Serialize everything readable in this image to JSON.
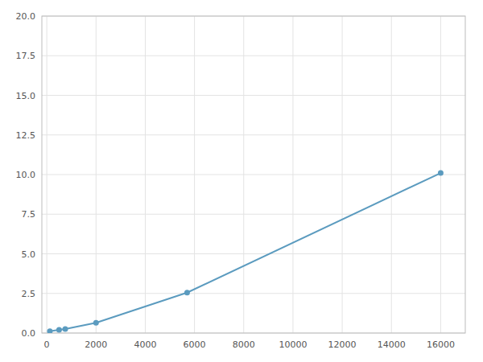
{
  "chart_data": {
    "type": "line",
    "x": [
      125,
      500,
      750,
      2000,
      5700,
      16000
    ],
    "values": [
      0.12,
      0.2,
      0.25,
      0.65,
      2.55,
      10.1
    ],
    "color": "#5b9bbf",
    "marker": "circle",
    "xlim": [
      -200,
      17000
    ],
    "ylim": [
      0,
      20.0
    ],
    "xticks": [
      0,
      2000,
      4000,
      6000,
      8000,
      10000,
      12000,
      14000,
      16000
    ],
    "yticks": [
      {
        "value": 0.0,
        "label": "0.0"
      },
      2.5,
      {
        "value": 5.0,
        "label": "5.0"
      },
      7.5,
      {
        "value": 10.0,
        "label": "10.0"
      },
      12.5,
      {
        "value": 15.0,
        "label": "15.0"
      },
      17.5,
      {
        "value": 20.0,
        "label": "20.0"
      }
    ],
    "grid": true
  }
}
